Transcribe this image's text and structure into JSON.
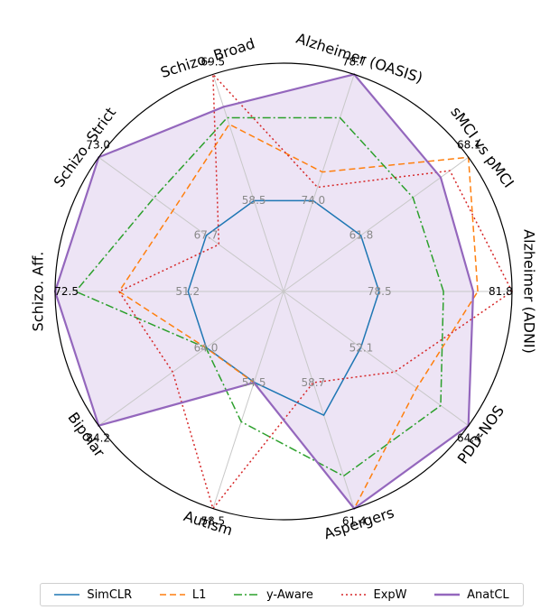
{
  "chart_data": {
    "type": "radar",
    "axes": [
      "Alzheimer (ADNI)",
      "sMCI vs pMCI",
      "Alzheimer (OASIS)",
      "Schizo. Broad",
      "Schizo. Strict",
      "Schizo. Aff.",
      "Bipolar",
      "Autism",
      "Aspergers",
      "PDD-NOS"
    ],
    "max_labels": [
      "81.8",
      "68.1",
      "78.7",
      "69.5",
      "73.0",
      "72.5",
      "84.2",
      "58.5",
      "61.4",
      "64.4"
    ],
    "min_labels": [
      "78.5",
      "61.8",
      "74.0",
      "58.5",
      "67.7",
      "51.2",
      "64.0",
      "54.5",
      "58.7",
      "52.1"
    ],
    "series": [
      {
        "name": "SimCLR",
        "color": "#1f77b4",
        "dash": "solid",
        "values": [
          0.418,
          0.418,
          0.418,
          0.418,
          0.418,
          0.418,
          0.418,
          0.418,
          0.57,
          0.418
        ]
      },
      {
        "name": "L1",
        "color": "#ff7f0e",
        "dash": "dashed",
        "values": [
          0.85,
          1.0,
          0.55,
          0.77,
          0.6,
          0.72,
          0.42,
          0.42,
          1.0,
          0.72
        ]
      },
      {
        "name": "y-Aware",
        "color": "#2ca02c",
        "dash": "dashdot",
        "values": [
          0.7,
          0.7,
          0.8,
          0.8,
          0.7,
          0.91,
          0.42,
          0.6,
          0.85,
          0.85
        ]
      },
      {
        "name": "ExpW",
        "color": "#d62728",
        "dash": "dotted",
        "values": [
          1.0,
          0.9,
          0.48,
          1.0,
          0.35,
          0.72,
          0.6,
          1.0,
          0.42,
          0.6
        ]
      },
      {
        "name": "AnatCL",
        "color": "#9467bd",
        "dash": "solid",
        "values": [
          0.83,
          0.85,
          1.0,
          0.85,
          1.0,
          1.0,
          1.0,
          0.42,
          1.0,
          1.0
        ],
        "fill": "#ede4f5"
      }
    ]
  }
}
